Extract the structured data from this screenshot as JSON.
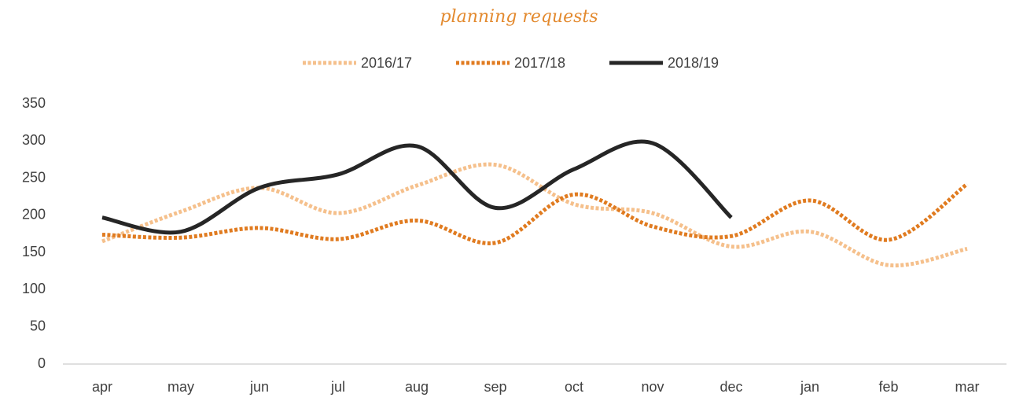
{
  "chart_data": {
    "type": "line",
    "title": "planning requests",
    "categories": [
      "apr",
      "may",
      "jun",
      "jul",
      "aug",
      "sep",
      "oct",
      "nov",
      "dec",
      "jan",
      "feb",
      "mar"
    ],
    "series": [
      {
        "name": "2016/17",
        "color": "#f5c08c",
        "style": "dotted",
        "values": [
          165,
          205,
          237,
          203,
          240,
          268,
          215,
          203,
          158,
          178,
          133,
          155
        ]
      },
      {
        "name": "2017/18",
        "color": "#e07b20",
        "style": "dotted",
        "values": [
          174,
          170,
          183,
          168,
          193,
          163,
          228,
          185,
          172,
          220,
          167,
          242
        ]
      },
      {
        "name": "2018/19",
        "color": "#262626",
        "style": "solid",
        "values": [
          197,
          178,
          237,
          255,
          293,
          210,
          262,
          297,
          197,
          null,
          null,
          null
        ]
      }
    ],
    "ylim": [
      0,
      350
    ],
    "yticks": [
      0,
      50,
      100,
      150,
      200,
      250,
      300,
      350
    ],
    "legend": "top",
    "grid": false
  }
}
